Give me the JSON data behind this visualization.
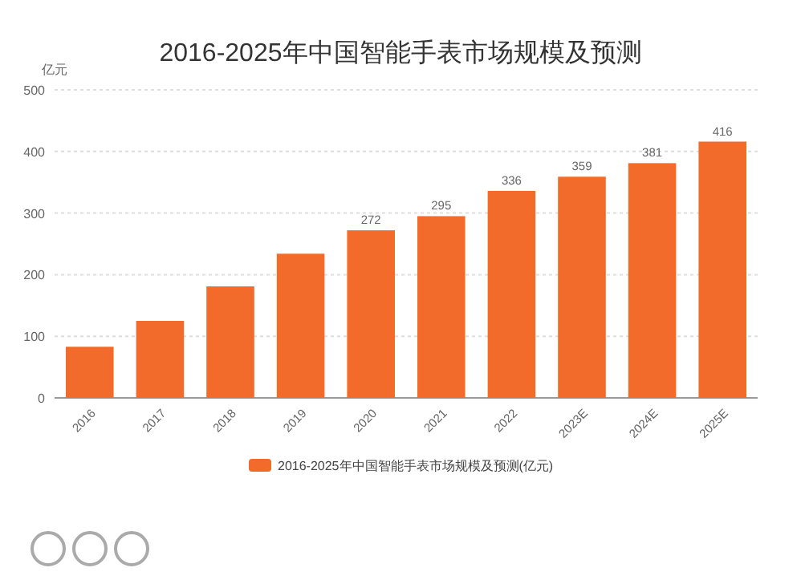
{
  "chart_data": {
    "type": "bar",
    "title": "2016-2025年中国智能手表市场规模及预测",
    "ylabel": "亿元",
    "categories": [
      "2016",
      "2017",
      "2018",
      "2019",
      "2020",
      "2021",
      "2022",
      "2023E",
      "2024E",
      "2025E"
    ],
    "series": [
      {
        "name": "2016-2025年中国智能手表市场规模及预测(亿元)",
        "color": "#f26b2a",
        "values": [
          83,
          125,
          181,
          234,
          272,
          295,
          336,
          359,
          381,
          416
        ],
        "value_labels": [
          null,
          null,
          null,
          null,
          "272",
          "295",
          "336",
          "359",
          "381",
          "416"
        ]
      }
    ],
    "ylim": [
      0,
      500
    ],
    "yticks": [
      0,
      100,
      200,
      300,
      400,
      500
    ],
    "grid": "y",
    "legend": "bottom"
  }
}
